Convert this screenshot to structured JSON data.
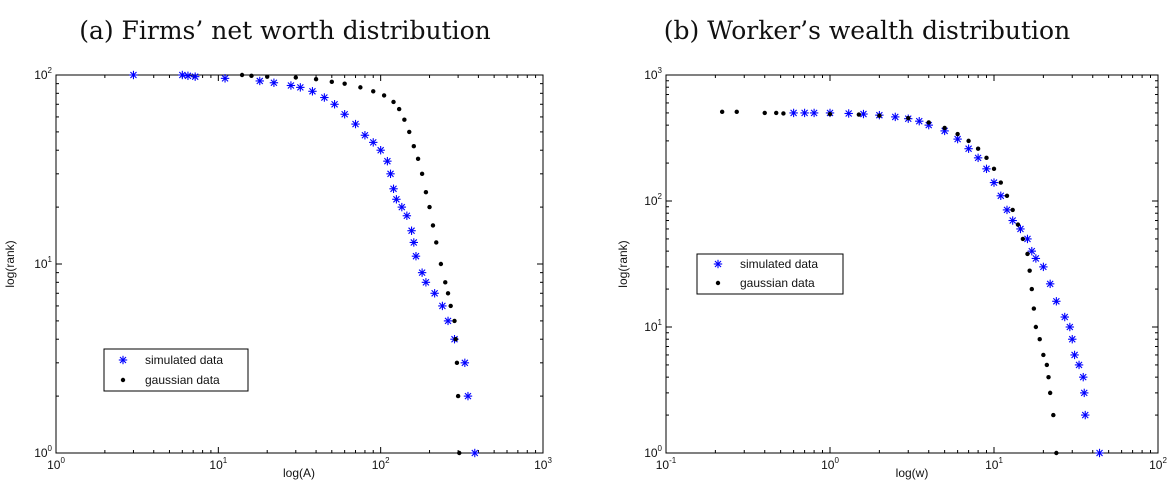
{
  "chart_data": [
    {
      "type": "scatter",
      "title": "(a) Firms’ net worth distribution",
      "xlabel": "log(A)",
      "ylabel": "log(rank)",
      "xscale": "log",
      "yscale": "log",
      "xlim": [
        1,
        1000
      ],
      "ylim": [
        1,
        100
      ],
      "x_ticks": [
        "10^0",
        "10^1",
        "10^2",
        "10^3"
      ],
      "y_ticks": [
        "10^0",
        "10^1",
        "10^2"
      ],
      "legend": "lower-left",
      "series": [
        {
          "name": "simulated data",
          "marker": "asterisk",
          "color": "#0000ff",
          "points": [
            [
              3,
              100
            ],
            [
              6,
              100
            ],
            [
              6.5,
              99
            ],
            [
              7.2,
              98
            ],
            [
              11,
              96
            ],
            [
              18,
              93
            ],
            [
              22,
              91
            ],
            [
              28,
              88
            ],
            [
              32,
              86
            ],
            [
              38,
              82
            ],
            [
              45,
              76
            ],
            [
              52,
              70
            ],
            [
              60,
              62
            ],
            [
              70,
              55
            ],
            [
              80,
              48
            ],
            [
              90,
              44
            ],
            [
              100,
              40
            ],
            [
              110,
              35
            ],
            [
              115,
              30
            ],
            [
              120,
              25
            ],
            [
              125,
              22
            ],
            [
              135,
              20
            ],
            [
              145,
              18
            ],
            [
              155,
              15
            ],
            [
              160,
              13
            ],
            [
              165,
              11
            ],
            [
              180,
              9
            ],
            [
              190,
              8
            ],
            [
              215,
              7
            ],
            [
              240,
              6
            ],
            [
              260,
              5
            ],
            [
              285,
              4
            ],
            [
              330,
              3
            ],
            [
              345,
              2
            ],
            [
              380,
              1
            ]
          ]
        },
        {
          "name": "gaussian data",
          "marker": "dot",
          "color": "#000000",
          "points": [
            [
              14,
              100
            ],
            [
              16,
              99
            ],
            [
              20,
              98
            ],
            [
              30,
              97
            ],
            [
              40,
              95
            ],
            [
              50,
              92
            ],
            [
              60,
              90
            ],
            [
              75,
              86
            ],
            [
              90,
              82
            ],
            [
              105,
              78
            ],
            [
              120,
              72
            ],
            [
              130,
              66
            ],
            [
              140,
              58
            ],
            [
              150,
              50
            ],
            [
              160,
              42
            ],
            [
              170,
              36
            ],
            [
              180,
              30
            ],
            [
              190,
              24
            ],
            [
              200,
              20
            ],
            [
              210,
              16
            ],
            [
              220,
              13
            ],
            [
              235,
              10
            ],
            [
              250,
              8
            ],
            [
              260,
              7
            ],
            [
              270,
              6
            ],
            [
              285,
              5
            ],
            [
              290,
              4
            ],
            [
              295,
              3
            ],
            [
              300,
              2
            ],
            [
              305,
              1
            ]
          ]
        }
      ]
    },
    {
      "type": "scatter",
      "title": "(b) Worker’s wealth distribution",
      "xlabel": "log(w)",
      "ylabel": "log(rank)",
      "xscale": "log",
      "yscale": "log",
      "xlim": [
        0.1,
        100
      ],
      "ylim": [
        1,
        1000
      ],
      "x_ticks": [
        "10^-1",
        "10^0",
        "10^1",
        "10^2"
      ],
      "y_ticks": [
        "10^0",
        "10^1",
        "10^2",
        "10^3"
      ],
      "legend": "center-left",
      "series": [
        {
          "name": "simulated data",
          "marker": "asterisk",
          "color": "#0000ff",
          "points": [
            [
              0.6,
              500
            ],
            [
              0.7,
              500
            ],
            [
              0.8,
              500
            ],
            [
              1.0,
              500
            ],
            [
              1.3,
              495
            ],
            [
              1.6,
              490
            ],
            [
              2.0,
              480
            ],
            [
              2.5,
              465
            ],
            [
              3.0,
              450
            ],
            [
              3.5,
              430
            ],
            [
              4.0,
              400
            ],
            [
              5.0,
              360
            ],
            [
              6.0,
              310
            ],
            [
              7.0,
              260
            ],
            [
              8.0,
              220
            ],
            [
              9.0,
              180
            ],
            [
              10.0,
              140
            ],
            [
              11.0,
              110
            ],
            [
              12.0,
              85
            ],
            [
              13.0,
              70
            ],
            [
              14.5,
              60
            ],
            [
              16.0,
              50
            ],
            [
              17.0,
              40
            ],
            [
              18.0,
              35
            ],
            [
              20.0,
              30
            ],
            [
              22.0,
              22
            ],
            [
              24.0,
              16
            ],
            [
              27.0,
              12
            ],
            [
              29.0,
              10
            ],
            [
              30.0,
              8
            ],
            [
              31.0,
              6
            ],
            [
              33.0,
              5
            ],
            [
              35.0,
              4
            ],
            [
              35.5,
              3
            ],
            [
              36.0,
              2
            ],
            [
              44.0,
              1
            ]
          ]
        },
        {
          "name": "gaussian data",
          "marker": "dot",
          "color": "#000000",
          "points": [
            [
              0.22,
              510
            ],
            [
              0.27,
              510
            ],
            [
              0.4,
              500
            ],
            [
              0.47,
              500
            ],
            [
              0.52,
              495
            ],
            [
              1.0,
              490
            ],
            [
              1.5,
              485
            ],
            [
              2.0,
              475
            ],
            [
              3.0,
              455
            ],
            [
              4.0,
              420
            ],
            [
              5.0,
              380
            ],
            [
              6.0,
              340
            ],
            [
              7.0,
              300
            ],
            [
              8.0,
              260
            ],
            [
              9.0,
              220
            ],
            [
              10.0,
              180
            ],
            [
              11.0,
              140
            ],
            [
              12.0,
              110
            ],
            [
              13.0,
              85
            ],
            [
              14.0,
              65
            ],
            [
              15.0,
              50
            ],
            [
              16.0,
              38
            ],
            [
              16.5,
              28
            ],
            [
              17.0,
              20
            ],
            [
              17.5,
              14
            ],
            [
              18.0,
              10
            ],
            [
              19.0,
              8
            ],
            [
              20.0,
              6
            ],
            [
              21.0,
              5
            ],
            [
              21.5,
              4
            ],
            [
              22.0,
              3
            ],
            [
              23.0,
              2
            ],
            [
              24.0,
              1
            ]
          ]
        }
      ]
    }
  ]
}
